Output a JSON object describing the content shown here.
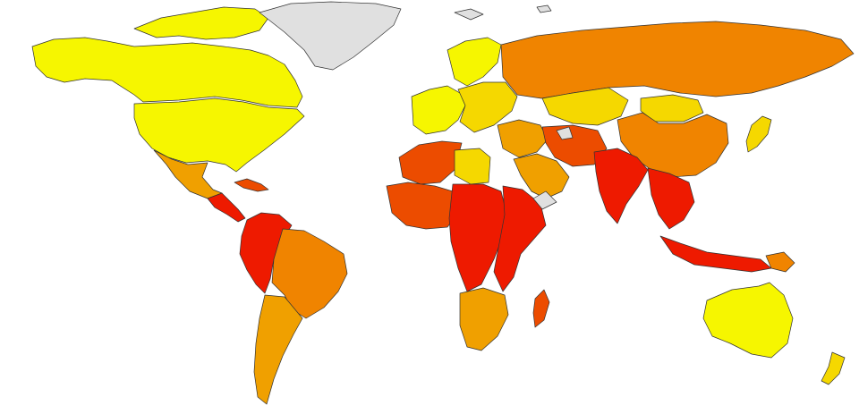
{
  "map": {
    "type": "choropleth-world-map",
    "title": "",
    "legend": null,
    "colors": {
      "background": "#ffffff",
      "no_data": "#e0e0e0",
      "level_1": "#f6f600",
      "level_2": "#f5d800",
      "level_3": "#f0a000",
      "level_4": "#f08400",
      "level_5": "#ec4c00",
      "level_6": "#ee1a00",
      "border": "#333333"
    },
    "regions": [
      {
        "name": "canada-alaska",
        "level": "level_1"
      },
      {
        "name": "arctic-islands",
        "level": "level_1"
      },
      {
        "name": "greenland",
        "level": "no_data"
      },
      {
        "name": "united-states",
        "level": "level_1"
      },
      {
        "name": "mexico",
        "level": "level_3"
      },
      {
        "name": "central-america",
        "level": "level_6"
      },
      {
        "name": "caribbean",
        "level": "level_5"
      },
      {
        "name": "northwest-south-america",
        "level": "level_6"
      },
      {
        "name": "brazil",
        "level": "level_4"
      },
      {
        "name": "southern-cone",
        "level": "level_3"
      },
      {
        "name": "western-europe",
        "level": "level_1"
      },
      {
        "name": "scandinavia",
        "level": "level_1"
      },
      {
        "name": "eastern-europe",
        "level": "level_2"
      },
      {
        "name": "russia",
        "level": "level_4"
      },
      {
        "name": "kazakhstan",
        "level": "level_2"
      },
      {
        "name": "middle-east",
        "level": "level_3"
      },
      {
        "name": "arabian-peninsula",
        "level": "level_3"
      },
      {
        "name": "iran-pakistan",
        "level": "level_5"
      },
      {
        "name": "south-asia",
        "level": "level_6"
      },
      {
        "name": "china",
        "level": "level_4"
      },
      {
        "name": "mongolia",
        "level": "level_2"
      },
      {
        "name": "japan",
        "level": "level_2"
      },
      {
        "name": "southeast-asia",
        "level": "level_6"
      },
      {
        "name": "indonesia",
        "level": "level_6"
      },
      {
        "name": "north-africa",
        "level": "level_5"
      },
      {
        "name": "libya",
        "level": "level_2"
      },
      {
        "name": "west-africa",
        "level": "level_5"
      },
      {
        "name": "central-africa",
        "level": "level_6"
      },
      {
        "name": "east-africa",
        "level": "level_6"
      },
      {
        "name": "southern-africa",
        "level": "level_3"
      },
      {
        "name": "madagascar",
        "level": "level_5"
      },
      {
        "name": "australia",
        "level": "level_1"
      },
      {
        "name": "new-zealand",
        "level": "level_2"
      },
      {
        "name": "png",
        "level": "level_4"
      }
    ]
  }
}
